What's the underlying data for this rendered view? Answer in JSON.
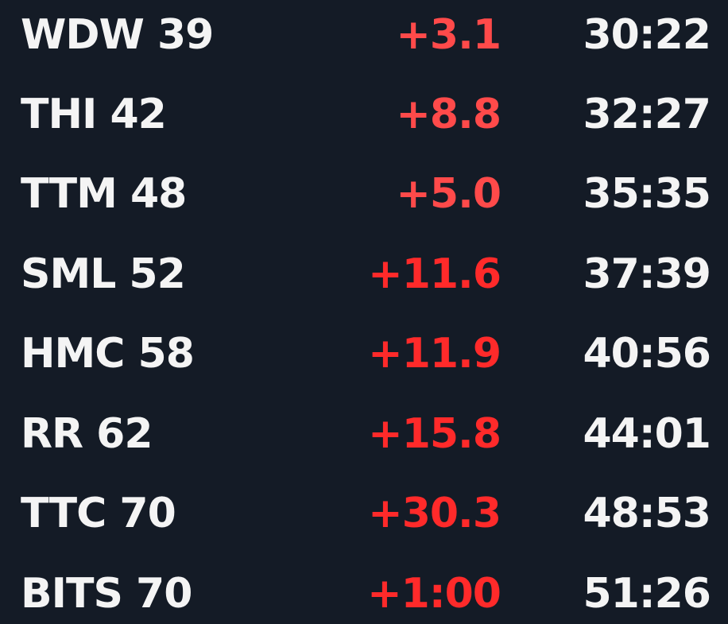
{
  "rows": [
    {
      "label": "WDW 39",
      "delta": "+3.1",
      "time": "30:22",
      "delta_color": "#ff4a4a"
    },
    {
      "label": "THI 42",
      "delta": "+8.8",
      "time": "32:27",
      "delta_color": "#ff4a4a"
    },
    {
      "label": "TTM 48",
      "delta": "+5.0",
      "time": "35:35",
      "delta_color": "#ff4a4a"
    },
    {
      "label": "SML 52",
      "delta": "+11.6",
      "time": "37:39",
      "delta_color": "#ff2a2a"
    },
    {
      "label": "HMC 58",
      "delta": "+11.9",
      "time": "40:56",
      "delta_color": "#ff2a2a"
    },
    {
      "label": "RR 62",
      "delta": "+15.8",
      "time": "44:01",
      "delta_color": "#ff2a2a"
    },
    {
      "label": "TTC 70",
      "delta": "+30.3",
      "time": "48:53",
      "delta_color": "#ff2a2a"
    },
    {
      "label": "BITS 70",
      "delta": "+1:00",
      "time": "51:26",
      "delta_color": "#ff2a2a"
    }
  ]
}
